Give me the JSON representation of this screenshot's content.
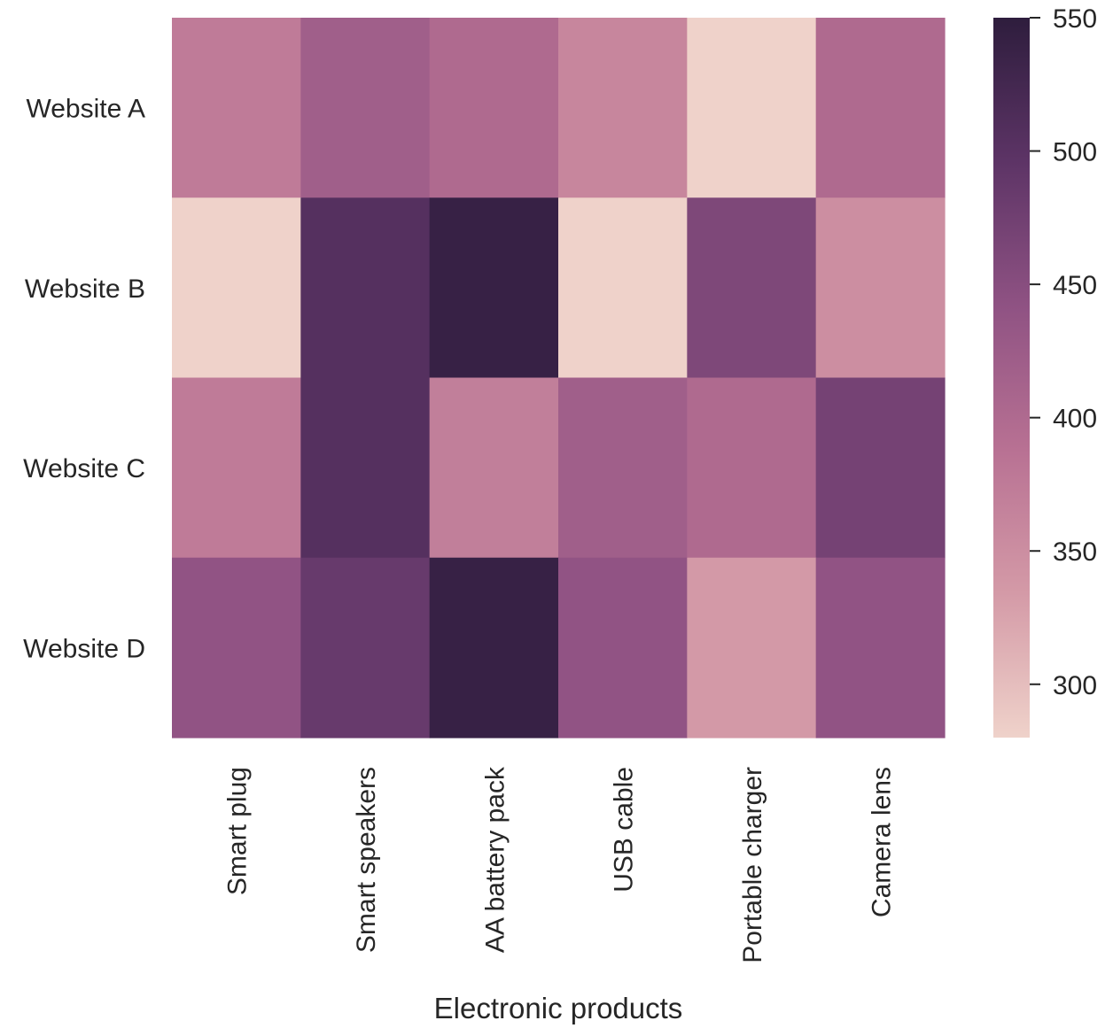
{
  "chart_data": {
    "type": "heatmap",
    "title": "",
    "xlabel": "Electronic products",
    "ylabel": "",
    "x_categories": [
      "Smart plug",
      "Smart speakers",
      "AA battery pack",
      "USB cable",
      "Portable charger",
      "Camera lens"
    ],
    "y_categories": [
      "Website A",
      "Website B",
      "Website C",
      "Website D"
    ],
    "values": [
      [
        375,
        420,
        400,
        360,
        280,
        400
      ],
      [
        280,
        505,
        540,
        280,
        460,
        350
      ],
      [
        375,
        505,
        370,
        420,
        400,
        470
      ],
      [
        440,
        485,
        540,
        440,
        335,
        440
      ]
    ],
    "colorbar": {
      "min": 280,
      "max": 550,
      "ticks": [
        300,
        350,
        400,
        450,
        500,
        550
      ]
    },
    "colors": {
      "stops": [
        "#efd2ca",
        "#d49aa7",
        "#b87193",
        "#8f5283",
        "#5d3466",
        "#2e1d3d"
      ],
      "text": "#262626",
      "background": "#ffffff"
    }
  }
}
